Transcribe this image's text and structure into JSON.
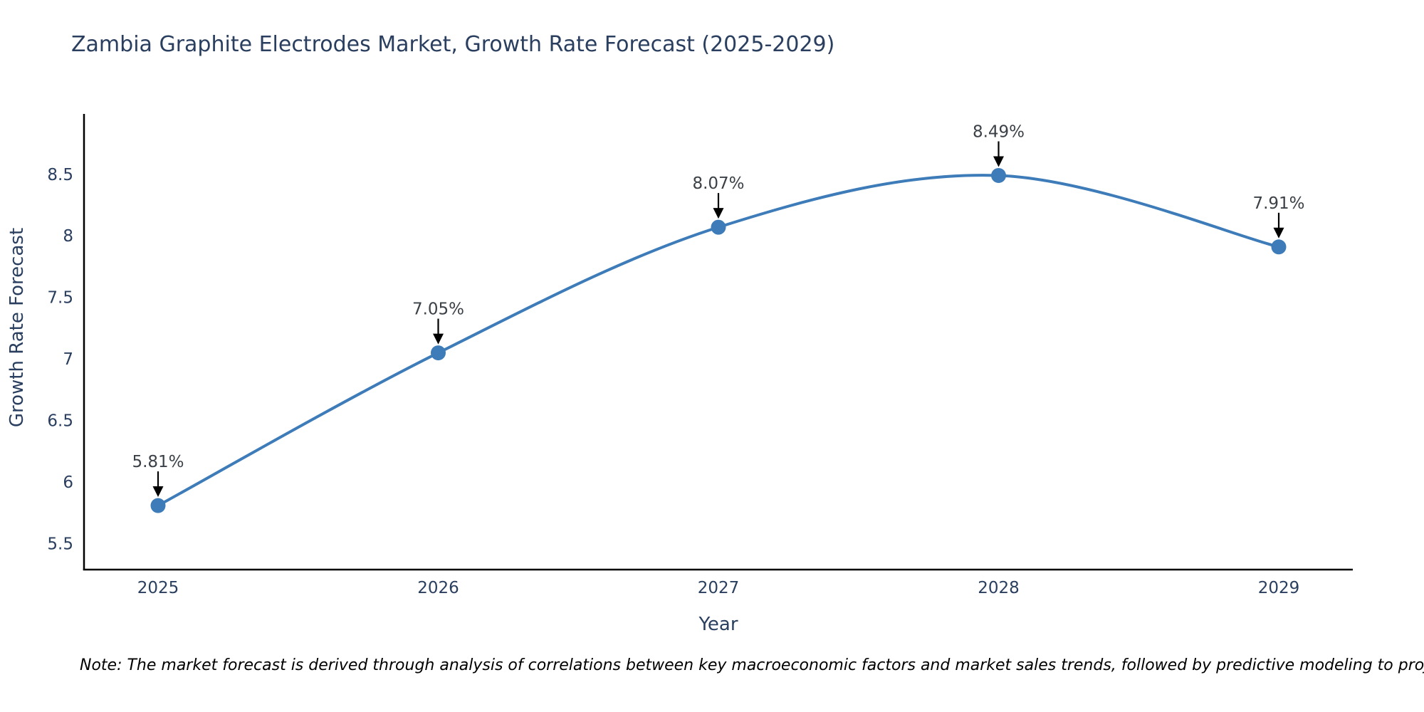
{
  "title": "Zambia Graphite Electrodes Market, Growth Rate Forecast (2025-2029)",
  "note": "Note: The market forecast is derived through analysis of correlations between key macroeconomic factors and market sales trends, followed by predictive modeling to project future sales",
  "chart_data": {
    "type": "line",
    "title": "Zambia Graphite Electrodes Market, Growth Rate Forecast (2025-2029)",
    "xlabel": "Year",
    "ylabel": "Growth Rate Forecast",
    "categories": [
      "2025",
      "2026",
      "2027",
      "2028",
      "2029"
    ],
    "series": [
      {
        "name": "Growth Rate Forecast",
        "values": [
          5.81,
          7.05,
          8.07,
          8.49,
          7.91
        ]
      }
    ],
    "point_labels": [
      "5.81%",
      "7.05%",
      "8.07%",
      "8.49%",
      "7.91%"
    ],
    "yticks": [
      5.5,
      6,
      6.5,
      7,
      7.5,
      8,
      8.5
    ],
    "ytick_labels": [
      "5.5",
      "6",
      "6.5",
      "7",
      "7.5",
      "8",
      "8.5"
    ],
    "ylim": [
      5.29,
      8.99
    ],
    "grid": false,
    "line_shape": "spline",
    "legend": "none",
    "colors": {
      "line": "#3d7cb8",
      "marker": "#3d7cb8",
      "arrow": "#000000",
      "axis": "#000000",
      "title": "#2a3f5f",
      "tick": "#2a3f5f",
      "annotation": "#3b4147",
      "note": "#000000",
      "background": "#ffffff"
    }
  }
}
